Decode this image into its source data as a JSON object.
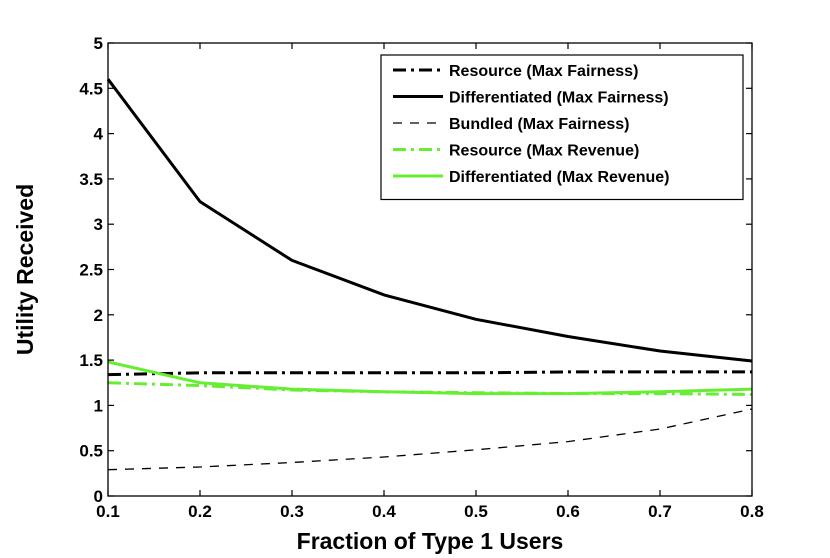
{
  "chart_data": {
    "type": "line",
    "title": "",
    "xlabel": "Fraction of Type 1 Users",
    "ylabel": "Utility Received",
    "xlim": [
      0.1,
      0.8
    ],
    "ylim": [
      0,
      5
    ],
    "xticks": [
      0.1,
      0.2,
      0.3,
      0.4,
      0.5,
      0.6,
      0.7,
      0.8
    ],
    "yticks": [
      0,
      0.5,
      1,
      1.5,
      2,
      2.5,
      3,
      3.5,
      4,
      4.5,
      5
    ],
    "xtick_labels": [
      "0.1",
      "0.2",
      "0.3",
      "0.4",
      "0.5",
      "0.6",
      "0.7",
      "0.8"
    ],
    "ytick_labels": [
      "0",
      "0.5",
      "1",
      "1.5",
      "2",
      "2.5",
      "3",
      "3.5",
      "4",
      "4.5",
      "5"
    ],
    "x": [
      0.1,
      0.2,
      0.3,
      0.4,
      0.5,
      0.6,
      0.7,
      0.8
    ],
    "legend_position": "top-right",
    "grid": false,
    "series": [
      {
        "name": "Resource (Max Fairness)",
        "color": "#000000",
        "style": "dashdot",
        "width": 3,
        "values": [
          1.34,
          1.36,
          1.36,
          1.36,
          1.36,
          1.37,
          1.37,
          1.37
        ]
      },
      {
        "name": "Differentiated (Max Fairness)",
        "color": "#000000",
        "style": "solid",
        "width": 3,
        "values": [
          4.6,
          3.25,
          2.6,
          2.22,
          1.95,
          1.76,
          1.6,
          1.49
        ]
      },
      {
        "name": "Bundled (Max Fairness)",
        "color": "#000000",
        "style": "dashed",
        "width": 1.3,
        "values": [
          0.29,
          0.32,
          0.37,
          0.43,
          0.51,
          0.6,
          0.74,
          0.96
        ]
      },
      {
        "name": "Resource (Max Revenue)",
        "color": "#66ee33",
        "style": "dashdot",
        "width": 3,
        "values": [
          1.25,
          1.22,
          1.17,
          1.15,
          1.14,
          1.13,
          1.13,
          1.12
        ]
      },
      {
        "name": "Differentiated (Max Revenue)",
        "color": "#66ee33",
        "style": "solid",
        "width": 3,
        "values": [
          1.48,
          1.25,
          1.18,
          1.15,
          1.13,
          1.13,
          1.15,
          1.18
        ]
      }
    ]
  }
}
